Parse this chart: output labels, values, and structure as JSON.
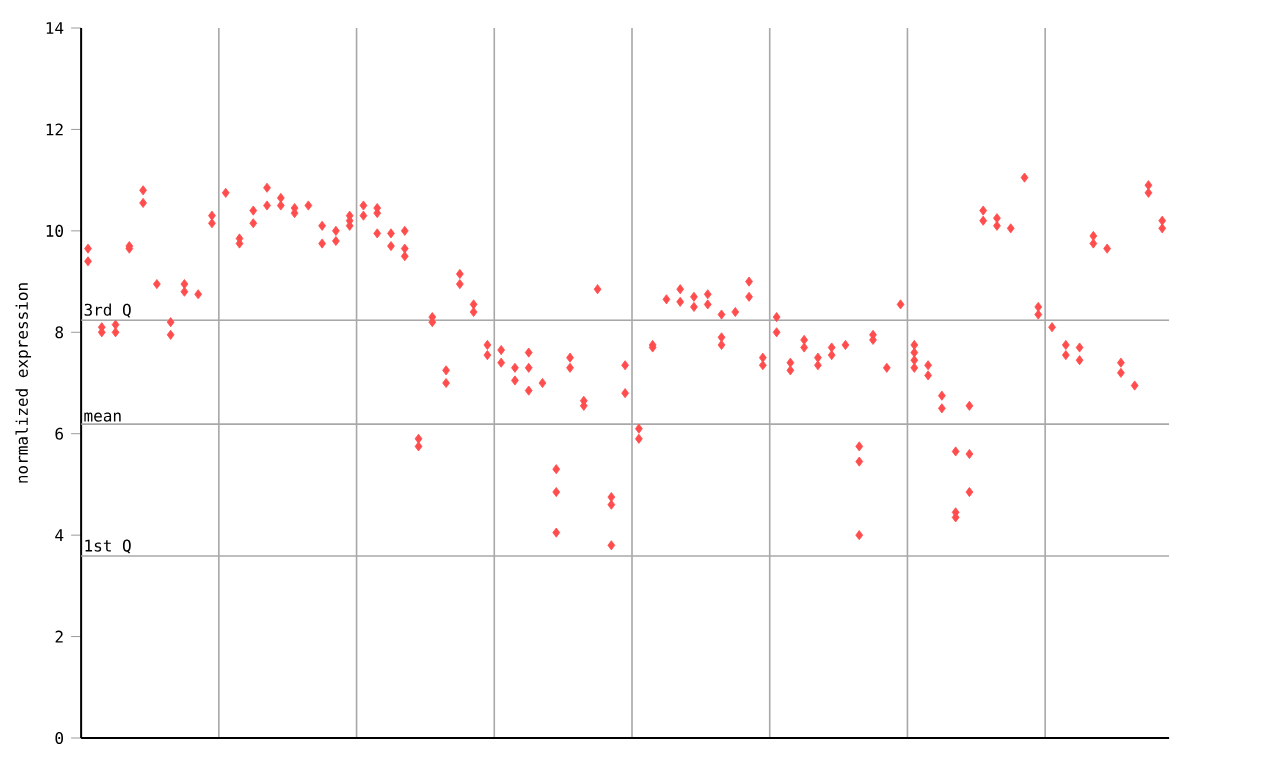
{
  "chart_data": {
    "type": "scatter",
    "ylabel": "normalized expression",
    "ylim": [
      0,
      14
    ],
    "categories": [
      null,
      null,
      null,
      null,
      null,
      null,
      null,
      null,
      null,
      null,
      null,
      null,
      null,
      null,
      null,
      null,
      null,
      null,
      null,
      null,
      null,
      null,
      null,
      null,
      null,
      null,
      null,
      null,
      null,
      null,
      null,
      null,
      null,
      null,
      null,
      null,
      null,
      null,
      null,
      null,
      null,
      null,
      null,
      null,
      null,
      null,
      null,
      null,
      null,
      null,
      null,
      null,
      null,
      null,
      null,
      null,
      null,
      null,
      null,
      null,
      null,
      null,
      null,
      null,
      null,
      null,
      null,
      null,
      null,
      null,
      null,
      null,
      null,
      null,
      null,
      null,
      null,
      null,
      null
    ],
    "yticks": [
      0,
      2,
      4,
      6,
      8,
      10,
      12,
      14
    ],
    "grid": "x",
    "tick_labels": "y",
    "marker": "diamond",
    "ref_lines": [
      {
        "axis": "y",
        "value": 8.24,
        "label": "3rd Q",
        "color": "#a8a8a8"
      },
      {
        "axis": "y",
        "value": 6.19,
        "label": "mean",
        "color": "#a8a8a8"
      },
      {
        "axis": "y",
        "value": 3.59,
        "label": "1st Q",
        "color": "#a8a8a8"
      }
    ],
    "series": [
      {
        "color": "#ff4d4d",
        "values": [
          9.65,
          8.1,
          8.15,
          9.7,
          10.8,
          8.95,
          8.2,
          8.95,
          8.75,
          10.3,
          10.75,
          9.85,
          10.4,
          10.85,
          10.65,
          10.45,
          10.5,
          10.1,
          10.0,
          10.3,
          10.5,
          10.45,
          9.95,
          9.65,
          5.9,
          8.3,
          7.25,
          9.15,
          8.55,
          7.75,
          7.65,
          7.3,
          7.6,
          7.0,
          5.3,
          7.5,
          6.65,
          8.85,
          4.75,
          7.35,
          6.1,
          7.75,
          8.65,
          8.85,
          8.7,
          8.75,
          8.35,
          8.4,
          9.0,
          7.5,
          8.3,
          7.4,
          7.85,
          7.5,
          7.7,
          7.75,
          5.75,
          7.95,
          7.3,
          8.55,
          7.75,
          7.35,
          6.75,
          5.65,
          6.55,
          10.4,
          10.25,
          10.05,
          11.05,
          8.5,
          8.1,
          7.75,
          7.7,
          9.9,
          9.65,
          7.4,
          6.95,
          10.9,
          10.2
        ]
      },
      {
        "color": "#ff4d4d",
        "values": [
          9.4,
          8.0,
          8.0,
          9.65,
          10.55,
          null,
          7.95,
          8.8,
          null,
          10.15,
          null,
          9.75,
          10.15,
          10.5,
          10.5,
          10.35,
          null,
          9.75,
          9.8,
          10.2,
          10.3,
          10.35,
          9.7,
          9.5,
          5.75,
          8.2,
          7.0,
          8.95,
          8.4,
          7.55,
          7.4,
          7.05,
          7.3,
          null,
          4.85,
          7.3,
          6.55,
          null,
          4.6,
          6.8,
          5.9,
          7.7,
          null,
          8.6,
          8.5,
          8.55,
          7.9,
          null,
          8.7,
          7.35,
          8.0,
          7.25,
          7.7,
          7.35,
          7.55,
          null,
          5.45,
          7.85,
          null,
          null,
          7.6,
          7.15,
          6.5,
          4.45,
          5.6,
          10.2,
          10.1,
          null,
          null,
          8.35,
          null,
          7.55,
          7.45,
          9.75,
          null,
          7.2,
          null,
          10.75,
          10.05
        ]
      },
      {
        "color": "#ff4d4d",
        "values": [
          null,
          null,
          null,
          null,
          null,
          null,
          null,
          null,
          null,
          null,
          null,
          null,
          null,
          null,
          null,
          null,
          null,
          null,
          null,
          10.1,
          null,
          9.95,
          null,
          10.0,
          null,
          null,
          null,
          null,
          null,
          null,
          null,
          null,
          6.85,
          null,
          4.05,
          null,
          null,
          null,
          3.8,
          null,
          null,
          null,
          null,
          null,
          null,
          null,
          7.75,
          null,
          null,
          null,
          null,
          null,
          null,
          null,
          null,
          null,
          4.0,
          null,
          null,
          null,
          7.45,
          null,
          null,
          4.35,
          4.85,
          null,
          null,
          null,
          null,
          null,
          null,
          null,
          null,
          null,
          null,
          null,
          null,
          null,
          null
        ]
      },
      {
        "color": "#ff4d4d",
        "values": [
          null,
          null,
          null,
          null,
          null,
          null,
          null,
          null,
          null,
          null,
          null,
          null,
          null,
          null,
          null,
          null,
          null,
          null,
          null,
          null,
          null,
          null,
          null,
          null,
          null,
          null,
          null,
          null,
          null,
          null,
          null,
          null,
          null,
          null,
          null,
          null,
          null,
          null,
          null,
          null,
          null,
          null,
          null,
          null,
          null,
          null,
          null,
          null,
          null,
          null,
          null,
          null,
          null,
          null,
          null,
          null,
          null,
          null,
          null,
          null,
          7.3,
          null,
          null,
          null,
          null,
          null,
          null,
          null,
          null,
          null,
          null,
          null,
          null,
          null,
          null,
          null,
          null,
          null,
          null
        ]
      }
    ]
  }
}
